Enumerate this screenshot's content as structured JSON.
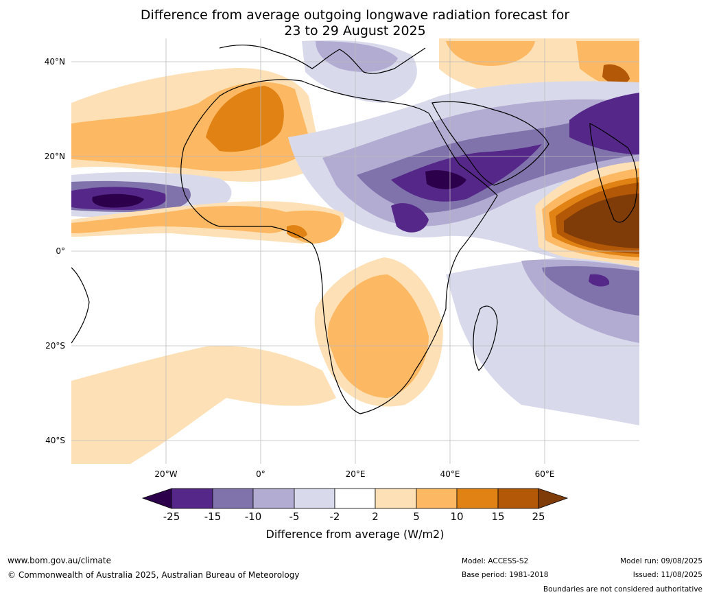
{
  "title": {
    "line1": "Difference from average outgoing longwave radiation forecast for",
    "line2": "23 to 29 August 2025"
  },
  "axes": {
    "lat_labels": [
      "40°N",
      "20°N",
      "0°",
      "20°S",
      "40°S"
    ],
    "lat_values": [
      40,
      20,
      0,
      -20,
      -40
    ],
    "lon_labels": [
      "20°W",
      "0°",
      "20°E",
      "40°E",
      "60°E"
    ],
    "lon_values": [
      -20,
      0,
      20,
      40,
      60
    ],
    "lon_range": [
      -40,
      80
    ],
    "lat_range": [
      -45,
      45
    ],
    "grid": true
  },
  "colorbar": {
    "ticks": [
      "-25",
      "-15",
      "-10",
      "-5",
      "-2",
      "2",
      "5",
      "10",
      "15",
      "25"
    ],
    "levels": [
      -25,
      -15,
      -10,
      -5,
      -2,
      2,
      5,
      10,
      15,
      25
    ],
    "colors": {
      "extend_low": "#2d004b",
      "b1": "#542788",
      "b2": "#8073ac",
      "b3": "#b2abd2",
      "b4": "#d8daeb",
      "b5": "#ffffff",
      "b6": "#fee0b6",
      "b7": "#fdb863",
      "b8": "#e08214",
      "b9": "#b35806",
      "extend_high": "#7f3b08"
    },
    "label": "Difference from average (W/m2)"
  },
  "footer": {
    "website": "www.bom.gov.au/climate",
    "copyright": "© Commonwealth of Australia 2025, Australian Bureau of Meteorology",
    "model": "Model: ACCESS-S2",
    "base_period": "Base period: 1981-2018",
    "model_run": "Model run: 09/08/2025",
    "issued": "Issued: 11/08/2025",
    "disclaimer": "Boundaries are not considered authoritative"
  }
}
